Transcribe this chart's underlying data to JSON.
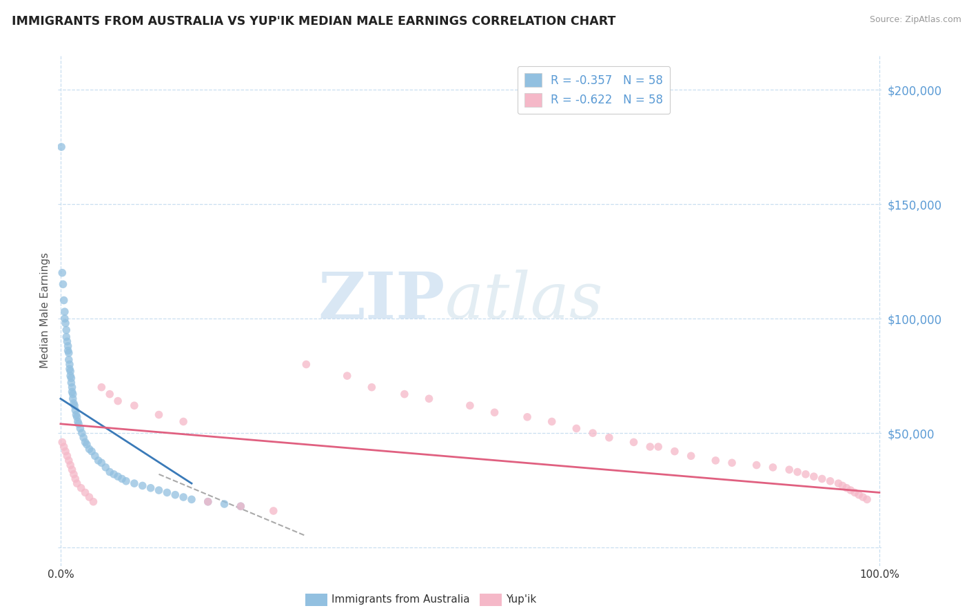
{
  "title": "IMMIGRANTS FROM AUSTRALIA VS YUP'IK MEDIAN MALE EARNINGS CORRELATION CHART",
  "source": "Source: ZipAtlas.com",
  "ylabel": "Median Male Earnings",
  "legend_label1": "Immigrants from Australia",
  "legend_label2": "Yup'ik",
  "watermark_zip": "ZIP",
  "watermark_atlas": "atlas",
  "ylim": [
    -8000,
    215000
  ],
  "xlim": [
    -0.003,
    1.003
  ],
  "yticks": [
    0,
    50000,
    100000,
    150000,
    200000
  ],
  "ytick_labels": [
    "",
    "$50,000",
    "$100,000",
    "$150,000",
    "$200,000"
  ],
  "blue_dot_color": "#92c0e0",
  "pink_dot_color": "#f5b8c8",
  "trend_blue_color": "#3a7ab8",
  "trend_pink_color": "#e06080",
  "trend_dash_color": "#aaaaaa",
  "grid_color": "#c8dff0",
  "title_color": "#222222",
  "yaxis_label_color": "#555555",
  "ytick_color": "#5b9bd5",
  "source_color": "#999999",
  "australia_x": [
    0.001,
    0.002,
    0.003,
    0.004,
    0.005,
    0.005,
    0.006,
    0.007,
    0.007,
    0.008,
    0.009,
    0.009,
    0.01,
    0.01,
    0.011,
    0.011,
    0.012,
    0.012,
    0.013,
    0.013,
    0.014,
    0.014,
    0.015,
    0.015,
    0.016,
    0.017,
    0.018,
    0.019,
    0.02,
    0.021,
    0.022,
    0.024,
    0.026,
    0.028,
    0.03,
    0.032,
    0.035,
    0.038,
    0.042,
    0.046,
    0.05,
    0.055,
    0.06,
    0.065,
    0.07,
    0.075,
    0.08,
    0.09,
    0.1,
    0.11,
    0.12,
    0.13,
    0.14,
    0.15,
    0.16,
    0.18,
    0.2,
    0.22
  ],
  "australia_y": [
    175000,
    120000,
    115000,
    108000,
    103000,
    100000,
    98000,
    95000,
    92000,
    90000,
    88000,
    86000,
    85000,
    82000,
    80000,
    78000,
    77000,
    75000,
    74000,
    72000,
    70000,
    68000,
    67000,
    65000,
    63000,
    62000,
    60000,
    58000,
    57000,
    55000,
    54000,
    52000,
    50000,
    48000,
    46000,
    45000,
    43000,
    42000,
    40000,
    38000,
    37000,
    35000,
    33000,
    32000,
    31000,
    30000,
    29000,
    28000,
    27000,
    26000,
    25000,
    24000,
    23000,
    22000,
    21000,
    20000,
    19000,
    18000
  ],
  "yupik_x": [
    0.002,
    0.004,
    0.006,
    0.008,
    0.01,
    0.012,
    0.014,
    0.016,
    0.018,
    0.02,
    0.025,
    0.03,
    0.035,
    0.04,
    0.05,
    0.06,
    0.07,
    0.09,
    0.12,
    0.15,
    0.18,
    0.22,
    0.26,
    0.3,
    0.35,
    0.38,
    0.42,
    0.45,
    0.5,
    0.53,
    0.57,
    0.6,
    0.63,
    0.65,
    0.67,
    0.7,
    0.72,
    0.73,
    0.75,
    0.77,
    0.8,
    0.82,
    0.85,
    0.87,
    0.89,
    0.9,
    0.91,
    0.92,
    0.93,
    0.94,
    0.95,
    0.955,
    0.96,
    0.965,
    0.97,
    0.975,
    0.98,
    0.985
  ],
  "yupik_y": [
    46000,
    44000,
    42000,
    40000,
    38000,
    36000,
    34000,
    32000,
    30000,
    28000,
    26000,
    24000,
    22000,
    20000,
    70000,
    67000,
    64000,
    62000,
    58000,
    55000,
    20000,
    18000,
    16000,
    80000,
    75000,
    70000,
    67000,
    65000,
    62000,
    59000,
    57000,
    55000,
    52000,
    50000,
    48000,
    46000,
    44000,
    44000,
    42000,
    40000,
    38000,
    37000,
    36000,
    35000,
    34000,
    33000,
    32000,
    31000,
    30000,
    29000,
    28000,
    27000,
    26000,
    25000,
    24000,
    23000,
    22000,
    21000
  ],
  "blue_trend_x0": 0.0,
  "blue_trend_x1": 0.16,
  "blue_trend_y0": 65000,
  "blue_trend_y1": 28000,
  "dash_trend_x0": 0.12,
  "dash_trend_x1": 0.3,
  "dash_trend_y0": 32000,
  "dash_trend_y1": 5000,
  "pink_trend_x0": 0.0,
  "pink_trend_x1": 1.0,
  "pink_trend_y0": 54000,
  "pink_trend_y1": 24000
}
